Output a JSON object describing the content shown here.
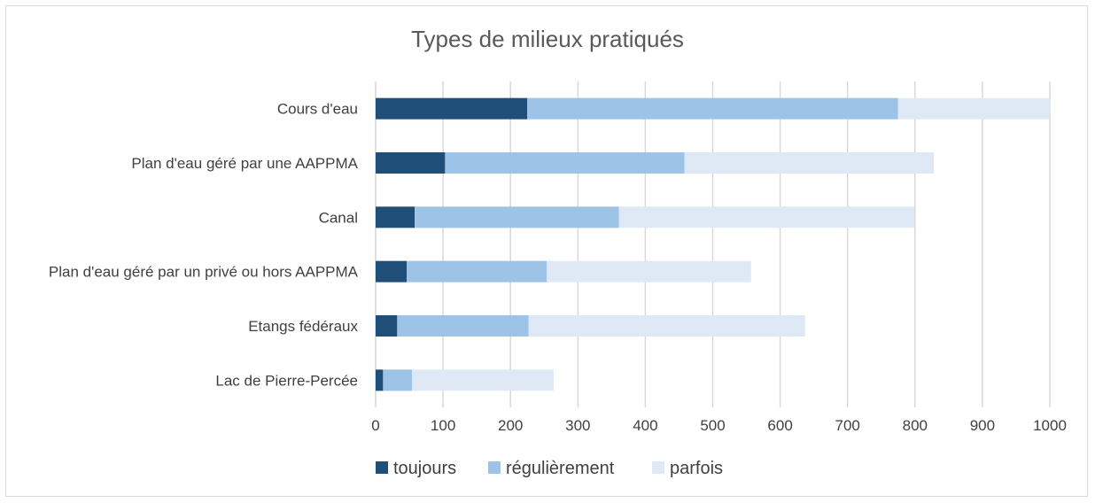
{
  "chart_data": {
    "type": "bar",
    "orientation": "horizontal",
    "stacked": true,
    "title": "Types de milieux pratiqués",
    "categories": [
      "Cours d'eau",
      "Plan d'eau géré par une AAPPMA",
      "Canal",
      "Plan d'eau géré par un privé ou hors AAPPMA",
      "Etangs fédéraux",
      "Lac de Pierre-Percée"
    ],
    "series": [
      {
        "name": "toujours",
        "color": "#1f4e79",
        "values": [
          225,
          103,
          58,
          46,
          32,
          11
        ]
      },
      {
        "name": "régulièrement",
        "color": "#9dc3e6",
        "values": [
          550,
          355,
          303,
          208,
          195,
          43
        ]
      },
      {
        "name": "parfois",
        "color": "#dee9f5",
        "values": [
          225,
          370,
          438,
          303,
          410,
          210
        ]
      }
    ],
    "xlim": [
      0,
      1000
    ],
    "ticks": [
      "0",
      "100",
      "200",
      "300",
      "400",
      "500",
      "600",
      "700",
      "800",
      "900",
      "1000"
    ],
    "grid": true,
    "legend_position": "bottom"
  }
}
